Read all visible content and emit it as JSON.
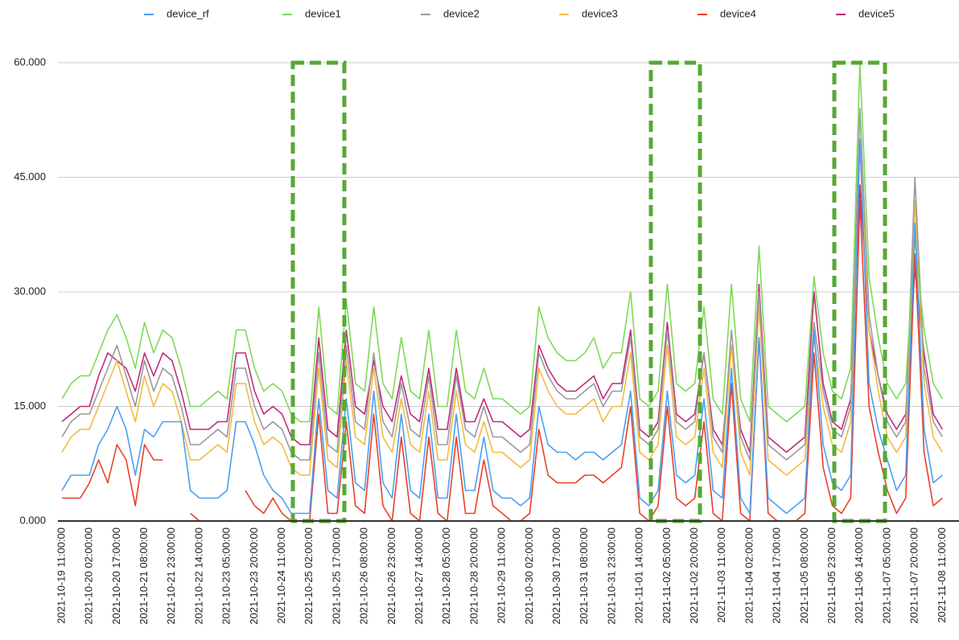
{
  "chart_data": {
    "type": "line",
    "categories": [
      "2021-10-19 11:00:00",
      null,
      null,
      "2021-10-20 02:00:00",
      null,
      null,
      "2021-10-20 17:00:00",
      null,
      null,
      "2021-10-21 08:00:00",
      null,
      null,
      "2021-10-21 23:00:00",
      null,
      null,
      "2021-10-22 14:00:00",
      null,
      null,
      "2021-10-23 05:00:00",
      null,
      null,
      "2021-10-23 20:00:00",
      null,
      null,
      "2021-10-24 11:00:00",
      null,
      null,
      "2021-10-25 02:00:00",
      null,
      null,
      "2021-10-25 17:00:00",
      null,
      null,
      "2021-10-26 08:00:00",
      null,
      null,
      "2021-10-26 23:00:00",
      null,
      null,
      "2021-10-27 14:00:00",
      null,
      null,
      "2021-10-28 05:00:00",
      null,
      null,
      "2021-10-28 20:00:00",
      null,
      null,
      "2021-10-29 11:00:00",
      null,
      null,
      "2021-10-30 02:00:00",
      null,
      null,
      "2021-10-30 17:00:00",
      null,
      null,
      "2021-10-31 08:00:00",
      null,
      null,
      "2021-10-31 23:00:00",
      null,
      null,
      "2021-11-01 14:00:00",
      null,
      null,
      "2021-11-02 05:00:00",
      null,
      null,
      "2021-11-02 20:00:00",
      null,
      null,
      "2021-11-03 11:00:00",
      null,
      null,
      "2021-11-04 02:00:00",
      null,
      null,
      "2021-11-04 17:00:00",
      null,
      null,
      "2021-11-05 08:00:00",
      null,
      null,
      "2021-11-05 23:00:00",
      null,
      null,
      "2021-11-06 14:00:00",
      null,
      null,
      "2021-11-07 05:00:00",
      null,
      null,
      "2021-11-07 20:00:00",
      null,
      null,
      "2021-11-08 11:00:00"
    ],
    "series": [
      {
        "name": "device_rf",
        "color": "#4a9ff5",
        "values": [
          4,
          6,
          6,
          6,
          10,
          12,
          15,
          12,
          6,
          12,
          11,
          13,
          13,
          13,
          4,
          3,
          3,
          3,
          4,
          13,
          13,
          10,
          6,
          4,
          3,
          1,
          1,
          1,
          16,
          4,
          3,
          16,
          5,
          4,
          17,
          5,
          3,
          14,
          4,
          3,
          14,
          3,
          3,
          14,
          4,
          4,
          11,
          4,
          3,
          3,
          2,
          3,
          15,
          10,
          9,
          9,
          8,
          9,
          9,
          8,
          9,
          10,
          17,
          3,
          2,
          4,
          17,
          6,
          5,
          6,
          16,
          4,
          3,
          20,
          3,
          1,
          24,
          3,
          2,
          1,
          2,
          3,
          25,
          10,
          5,
          4,
          6,
          50,
          18,
          12,
          8,
          4,
          6,
          39,
          12,
          5,
          6
        ]
      },
      {
        "name": "device1",
        "color": "#7ed957",
        "values": [
          16,
          18,
          19,
          19,
          22,
          25,
          27,
          24,
          20,
          26,
          22,
          25,
          24,
          20,
          15,
          15,
          16,
          17,
          16,
          25,
          25,
          20,
          17,
          18,
          17,
          14,
          13,
          13,
          28,
          15,
          14,
          29,
          18,
          17,
          28,
          18,
          16,
          24,
          17,
          16,
          25,
          15,
          15,
          25,
          17,
          16,
          20,
          16,
          16,
          15,
          14,
          15,
          28,
          24,
          22,
          21,
          21,
          22,
          24,
          20,
          22,
          22,
          30,
          16,
          15,
          17,
          31,
          18,
          17,
          18,
          28,
          16,
          14,
          31,
          16,
          13,
          36,
          15,
          14,
          13,
          14,
          15,
          32,
          22,
          17,
          16,
          20,
          60,
          32,
          24,
          18,
          16,
          18,
          37,
          25,
          18,
          16
        ]
      },
      {
        "name": "device2",
        "color": "#9a9a9a",
        "values": [
          11,
          13,
          14,
          14,
          17,
          20,
          23,
          19,
          15,
          21,
          17,
          20,
          19,
          15,
          10,
          10,
          11,
          12,
          11,
          20,
          20,
          15,
          12,
          13,
          12,
          9,
          8,
          8,
          22,
          10,
          9,
          23,
          13,
          12,
          22,
          13,
          11,
          18,
          12,
          11,
          19,
          10,
          10,
          19,
          12,
          11,
          15,
          11,
          11,
          10,
          9,
          10,
          22,
          19,
          17,
          16,
          16,
          17,
          18,
          15,
          17,
          17,
          24,
          11,
          10,
          12,
          25,
          13,
          12,
          13,
          22,
          11,
          9,
          25,
          11,
          8,
          30,
          10,
          9,
          8,
          9,
          10,
          26,
          17,
          12,
          11,
          15,
          54,
          27,
          19,
          13,
          11,
          13,
          45,
          20,
          13,
          11
        ]
      },
      {
        "name": "device3",
        "color": "#f4b942",
        "values": [
          9,
          11,
          12,
          12,
          15,
          18,
          21,
          17,
          13,
          19,
          15,
          18,
          17,
          13,
          8,
          8,
          9,
          10,
          9,
          18,
          18,
          13,
          10,
          11,
          10,
          7,
          6,
          6,
          20,
          8,
          7,
          21,
          11,
          10,
          20,
          11,
          9,
          16,
          10,
          9,
          17,
          8,
          8,
          17,
          10,
          9,
          13,
          9,
          9,
          8,
          7,
          8,
          20,
          17,
          15,
          14,
          14,
          15,
          16,
          13,
          15,
          15,
          22,
          9,
          8,
          10,
          23,
          11,
          10,
          11,
          20,
          9,
          7,
          23,
          9,
          6,
          28,
          8,
          7,
          6,
          7,
          8,
          24,
          15,
          10,
          9,
          13,
          50,
          25,
          17,
          11,
          9,
          11,
          42,
          18,
          11,
          9
        ]
      },
      {
        "name": "device4",
        "color": "#e8402a",
        "values": [
          3,
          3,
          3,
          5,
          8,
          5,
          10,
          8,
          2,
          10,
          8,
          8,
          null,
          null,
          1,
          0,
          0,
          0,
          0,
          null,
          4,
          2,
          1,
          3,
          1,
          0,
          0,
          0,
          14,
          1,
          1,
          13,
          2,
          1,
          14,
          2,
          0,
          11,
          1,
          0,
          11,
          1,
          0,
          11,
          1,
          1,
          8,
          2,
          1,
          0,
          0,
          1,
          12,
          6,
          5,
          5,
          5,
          6,
          6,
          5,
          6,
          7,
          15,
          1,
          0,
          2,
          15,
          3,
          2,
          3,
          13,
          1,
          0,
          18,
          1,
          0,
          24,
          1,
          0,
          0,
          0,
          1,
          22,
          7,
          2,
          1,
          3,
          42,
          15,
          9,
          4,
          1,
          3,
          35,
          9,
          2,
          3
        ]
      },
      {
        "name": "device5",
        "color": "#c2287a",
        "values": [
          13,
          14,
          15,
          15,
          19,
          22,
          21,
          20,
          17,
          22,
          19,
          22,
          21,
          17,
          12,
          12,
          12,
          13,
          13,
          22,
          22,
          17,
          14,
          15,
          14,
          11,
          10,
          10,
          24,
          12,
          11,
          25,
          15,
          14,
          21,
          15,
          13,
          19,
          14,
          13,
          20,
          12,
          12,
          20,
          13,
          13,
          16,
          13,
          13,
          12,
          11,
          12,
          23,
          20,
          18,
          17,
          17,
          18,
          19,
          16,
          18,
          18,
          25,
          12,
          11,
          13,
          26,
          14,
          13,
          14,
          22,
          12,
          10,
          23,
          12,
          9,
          31,
          11,
          10,
          9,
          10,
          11,
          30,
          18,
          13,
          12,
          16,
          44,
          25,
          19,
          14,
          12,
          14,
          33,
          22,
          14,
          12
        ]
      }
    ],
    "ylim": [
      0,
      60
    ],
    "yticks": [
      {
        "value": 0,
        "label": "0.000"
      },
      {
        "value": 15,
        "label": "15.000"
      },
      {
        "value": 30,
        "label": "30.000"
      },
      {
        "value": 45,
        "label": "45.000"
      },
      {
        "value": 60,
        "label": "60.000"
      }
    ],
    "grid": true,
    "legend": "top"
  }
}
